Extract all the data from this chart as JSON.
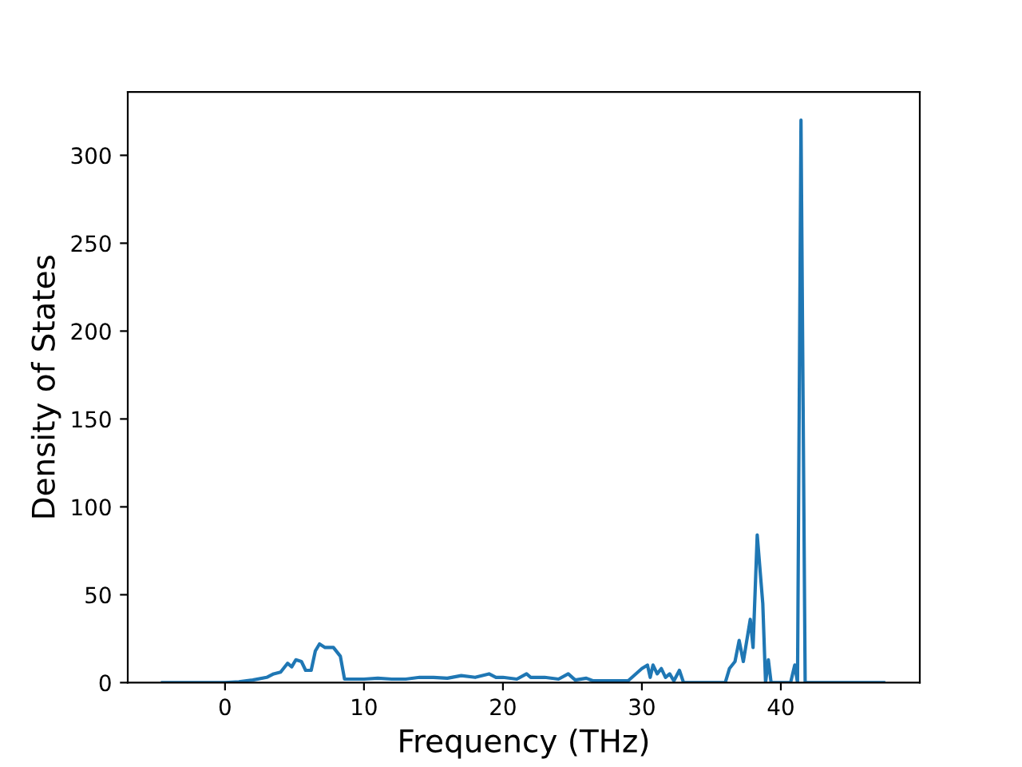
{
  "chart_data": {
    "type": "line",
    "xlabel": "Frequency (THz)",
    "ylabel": "Density of States",
    "xlim": [
      -7,
      50
    ],
    "ylim": [
      0,
      336
    ],
    "xticks": [
      0,
      10,
      20,
      30,
      40
    ],
    "yticks": [
      0,
      50,
      100,
      150,
      200,
      250,
      300
    ],
    "grid": false,
    "legend": false,
    "marker": "none",
    "line_style": "solid",
    "series": [
      {
        "color": "#1f77b4",
        "x": [
          -4.5,
          0,
          1,
          2,
          3,
          3.5,
          4,
          4.5,
          4.8,
          5.1,
          5.5,
          5.8,
          6.2,
          6.5,
          6.8,
          7.2,
          7.8,
          8.3,
          8.6,
          10,
          11,
          12,
          13,
          14,
          15,
          16,
          17,
          18,
          19,
          19.5,
          20,
          21,
          21.7,
          22,
          23,
          24,
          24.7,
          25.2,
          26,
          26.5,
          29,
          30,
          30.4,
          30.6,
          30.8,
          31.1,
          31.4,
          31.7,
          32,
          32.3,
          32.7,
          33,
          36,
          36.3,
          36.7,
          37,
          37.3,
          37.8,
          38,
          38.3,
          38.7,
          38.9,
          39.1,
          39.3,
          40.7,
          41.0,
          41.2,
          41.45,
          41.75,
          47.4
        ],
        "values": [
          0,
          0,
          0.5,
          1.5,
          3,
          5,
          6,
          11,
          9,
          13,
          12,
          7,
          7,
          18,
          22,
          20,
          20,
          15,
          2,
          2,
          2.5,
          2,
          2,
          3,
          3,
          2.5,
          4,
          3,
          5,
          3,
          3,
          2,
          5,
          3,
          3,
          2,
          5,
          1.5,
          2.5,
          1,
          1,
          8,
          10,
          3,
          10,
          5,
          8,
          3,
          5,
          1,
          7,
          0,
          0,
          8,
          12,
          24,
          12,
          36,
          20,
          84,
          45,
          0,
          13,
          0,
          0,
          10,
          0,
          320,
          0,
          0
        ]
      }
    ]
  }
}
